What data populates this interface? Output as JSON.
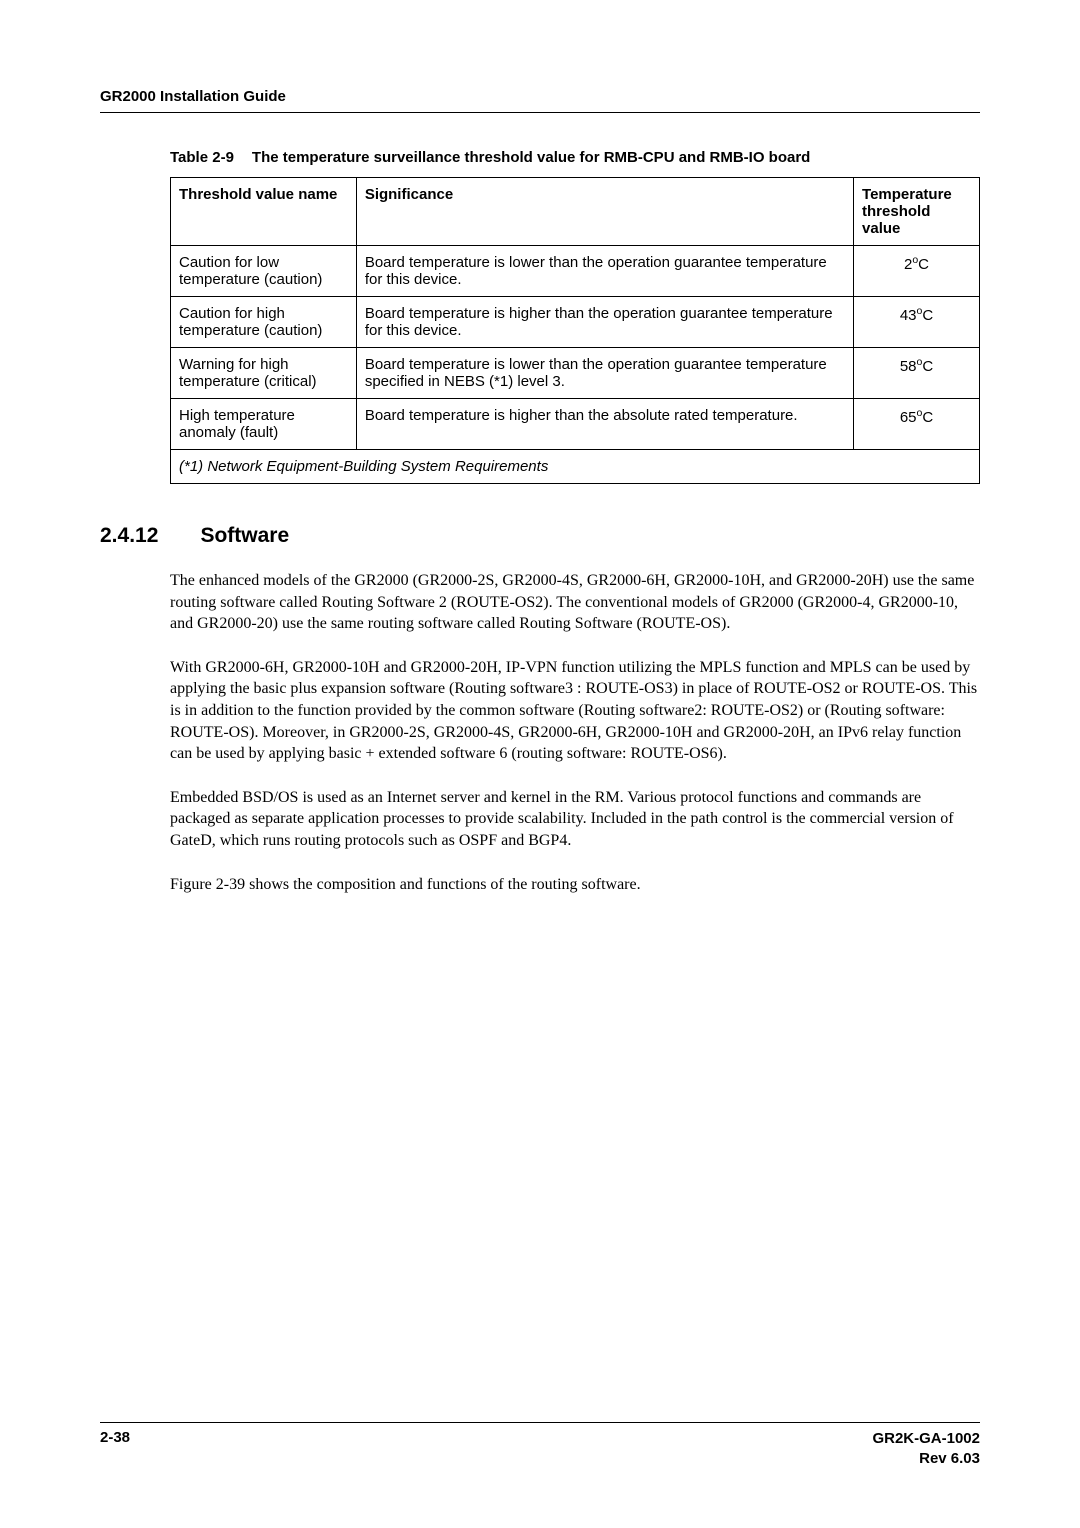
{
  "header": {
    "title": "GR2000 Installation Guide"
  },
  "table": {
    "caption_label": "Table 2-9",
    "caption_text": "The temperature surveillance threshold value for RMB-CPU and RMB-IO board",
    "headers": {
      "c0": "Threshold value name",
      "c1": "Significance",
      "c2": "Temperature threshold value"
    },
    "rows": [
      {
        "c0": "Caution for low temperature (caution)",
        "c1": "Board temperature is lower than the operation guarantee temperature for this device.",
        "temp_num": "2",
        "temp_unit_sup": "o",
        "temp_unit": "C"
      },
      {
        "c0": "Caution for high temperature (caution)",
        "c1": "Board temperature is higher than the operation guarantee temperature for this device.",
        "temp_num": "43",
        "temp_unit_sup": "o",
        "temp_unit": "C"
      },
      {
        "c0": "Warning for high temperature (critical)",
        "c1": "Board temperature is lower than the operation guarantee temperature specified in NEBS (*1) level 3.",
        "temp_num": "58",
        "temp_unit_sup": "o",
        "temp_unit": "C"
      },
      {
        "c0": "High temperature anomaly (fault)",
        "c1": "Board temperature is higher than the absolute rated temperature.",
        "temp_num": "65",
        "temp_unit_sup": "o",
        "temp_unit": "C"
      }
    ],
    "footnote": "(*1) Network Equipment-Building System Requirements"
  },
  "section": {
    "num": "2.4.12",
    "title": "Software"
  },
  "paras": {
    "p1": "The enhanced models of the GR2000 (GR2000-2S, GR2000-4S, GR2000-6H, GR2000-10H, and GR2000-20H) use the same routing software called Routing Software 2 (ROUTE-OS2). The conventional models of GR2000 (GR2000-4, GR2000-10, and GR2000-20) use the same routing software called Routing Software (ROUTE-OS).",
    "p2": "With GR2000-6H, GR2000-10H and GR2000-20H, IP-VPN function utilizing the MPLS function and MPLS can be used by applying the basic plus expansion software (Routing software3 : ROUTE-OS3) in place of ROUTE-OS2 or ROUTE-OS.  This is in addition to the function provided by the common software (Routing software2: ROUTE-OS2) or (Routing software: ROUTE-OS). Moreover, in GR2000-2S, GR2000-4S, GR2000-6H, GR2000-10H and GR2000-20H, an IPv6 relay function can be used by applying basic + extended software 6 (routing software: ROUTE-OS6).",
    "p3": "Embedded BSD/OS is used as an Internet server and kernel in the RM. Various protocol functions and commands are packaged as separate application processes to provide scalability. Included in the path control is the commercial version of GateD, which runs routing protocols such as OSPF and BGP4.",
    "p4": "Figure 2-39 shows the composition and functions of the routing software."
  },
  "footer": {
    "page": "2-38",
    "doc1": "GR2K-GA-1002",
    "doc2": "Rev 6.03"
  }
}
